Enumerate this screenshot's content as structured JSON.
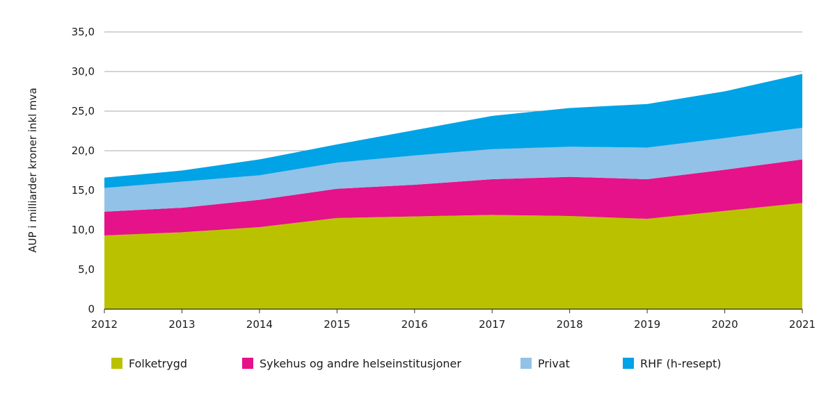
{
  "chart_data": {
    "type": "area",
    "stacked": true,
    "title": "",
    "xlabel": "",
    "ylabel": "AUP i milliarder kroner inkl mva",
    "ylim": [
      0,
      35
    ],
    "yticks": [
      "0",
      "5,0",
      "10,0",
      "15,0",
      "20,0",
      "25,0",
      "30,0",
      "35,0"
    ],
    "ytick_values": [
      0,
      5,
      10,
      15,
      20,
      25,
      30,
      35
    ],
    "grid": "horizontal",
    "legend_position": "bottom",
    "x": [
      "2012",
      "2013",
      "2014",
      "2015",
      "2016",
      "2017",
      "2018",
      "2019",
      "2020",
      "2021"
    ],
    "series": [
      {
        "name": "Folketrygd",
        "color": "#bac200",
        "values": [
          9.3,
          9.7,
          10.35,
          11.5,
          11.7,
          11.9,
          11.75,
          11.4,
          12.4,
          13.4
        ]
      },
      {
        "name": "Sykehus og andre helseinstitusjoner",
        "color": "#e5128a",
        "values": [
          3.0,
          3.1,
          3.45,
          3.7,
          4.0,
          4.5,
          4.95,
          5.0,
          5.2,
          5.5
        ]
      },
      {
        "name": "Privat",
        "color": "#92c2e8",
        "values": [
          3.0,
          3.3,
          3.1,
          3.3,
          3.7,
          3.8,
          3.8,
          4.0,
          4.0,
          4.0
        ]
      },
      {
        "name": "RHF (h-resept)",
        "color": "#00a3e5",
        "values": [
          1.3,
          1.4,
          2.0,
          2.3,
          3.2,
          4.2,
          4.9,
          5.5,
          5.9,
          6.8
        ]
      }
    ]
  }
}
